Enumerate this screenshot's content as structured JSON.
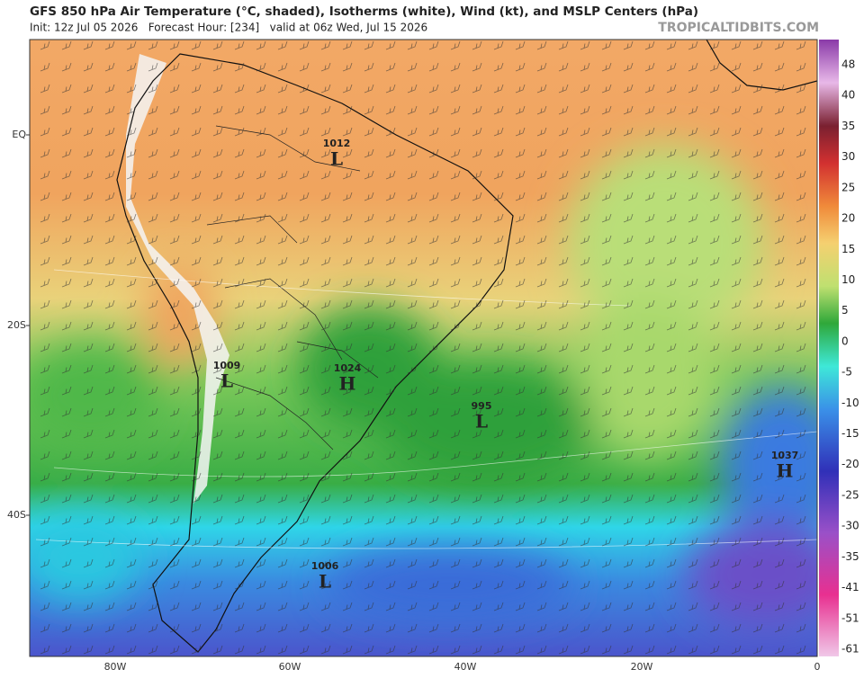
{
  "header": {
    "title": "GFS 850 hPa Air Temperature (°C, shaded), Isotherms (white), Wind (kt), and MSLP Centers (hPa)",
    "subtitle": "Init: 12z Jul 05 2026   Forecast Hour: [234]   valid at 06z Wed, Jul 15 2026",
    "brand": "TROPICALTIDBITS.COM"
  },
  "latitude_labels": [
    "EQ",
    "20S",
    "40S"
  ],
  "longitude_labels": [
    "80W",
    "60W",
    "40W",
    "20W",
    "0"
  ],
  "pressure_centers": [
    {
      "value": "1012",
      "kind": "L"
    },
    {
      "value": "1009",
      "kind": "L"
    },
    {
      "value": "1024",
      "kind": "H"
    },
    {
      "value": "995",
      "kind": "L"
    },
    {
      "value": "1037",
      "kind": "H"
    },
    {
      "value": "1006",
      "kind": "L"
    }
  ],
  "colorbar_labels": [
    "48",
    "40",
    "35",
    "30",
    "25",
    "20",
    "15",
    "10",
    "5",
    "0",
    "-5",
    "-10",
    "-15",
    "-20",
    "-25",
    "-30",
    "-35",
    "-41",
    "-51",
    "-61"
  ]
}
